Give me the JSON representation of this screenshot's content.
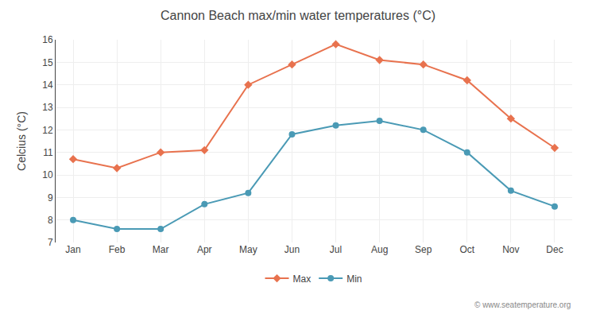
{
  "chart_data": {
    "type": "line",
    "title": "Cannon Beach max/min water temperatures (°C)",
    "y_label": "Celcius (°C)",
    "categories": [
      "Jan",
      "Feb",
      "Mar",
      "Apr",
      "May",
      "Jun",
      "Jul",
      "Aug",
      "Sep",
      "Oct",
      "Nov",
      "Dec"
    ],
    "series": [
      {
        "name": "Max",
        "color": "#e8724e",
        "marker": "diamond",
        "line_style": "solid",
        "values": [
          10.7,
          10.3,
          11.0,
          11.1,
          14.0,
          14.9,
          15.8,
          15.1,
          14.9,
          14.2,
          12.5,
          11.2
        ]
      },
      {
        "name": "Min",
        "color": "#4a9ab5",
        "marker": "circle",
        "line_style": "solid",
        "values": [
          8.0,
          7.6,
          7.6,
          8.7,
          9.2,
          11.8,
          12.2,
          12.4,
          12.0,
          11.0,
          9.3,
          8.6
        ]
      }
    ],
    "ylim": [
      7,
      16
    ],
    "yticks": [
      7,
      8,
      9,
      10,
      11,
      12,
      13,
      14,
      15,
      16
    ],
    "grid": true,
    "legend": "bottom",
    "annotations": [
      "© www.seatemperature.org"
    ]
  }
}
